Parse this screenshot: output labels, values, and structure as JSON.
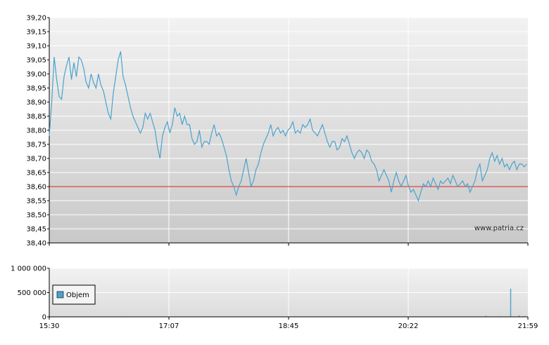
{
  "watermark": "www.patria.cz",
  "chart_data": [
    {
      "type": "line",
      "ylim": [
        38.4,
        39.2
      ],
      "y_ticks": [
        "39,20",
        "39,15",
        "39,10",
        "39,05",
        "39,00",
        "38,95",
        "38,90",
        "38,85",
        "38,80",
        "38,75",
        "38,70",
        "38,65",
        "38,60",
        "38,55",
        "38,50",
        "38,45",
        "38,40"
      ],
      "reference_line": 38.6,
      "colors": {
        "line": "#4aa3cc",
        "reference": "#e02020",
        "grid": "#ffffff"
      },
      "x_range_minutes": [
        0,
        389
      ],
      "series": [
        {
          "points": [
            [
              0,
              38.78
            ],
            [
              2,
              38.9
            ],
            [
              4,
              39.06
            ],
            [
              6,
              38.98
            ],
            [
              8,
              38.92
            ],
            [
              10,
              38.91
            ],
            [
              12,
              38.99
            ],
            [
              14,
              39.03
            ],
            [
              16,
              39.06
            ],
            [
              18,
              38.98
            ],
            [
              20,
              39.04
            ],
            [
              22,
              38.99
            ],
            [
              24,
              39.06
            ],
            [
              26,
              39.05
            ],
            [
              28,
              39.02
            ],
            [
              30,
              38.97
            ],
            [
              32,
              38.95
            ],
            [
              34,
              39.0
            ],
            [
              36,
              38.97
            ],
            [
              38,
              38.95
            ],
            [
              40,
              39.0
            ],
            [
              42,
              38.96
            ],
            [
              44,
              38.94
            ],
            [
              46,
              38.9
            ],
            [
              48,
              38.86
            ],
            [
              50,
              38.84
            ],
            [
              52,
              38.93
            ],
            [
              54,
              38.99
            ],
            [
              56,
              39.05
            ],
            [
              58,
              39.08
            ],
            [
              60,
              38.99
            ],
            [
              62,
              38.96
            ],
            [
              64,
              38.92
            ],
            [
              66,
              38.88
            ],
            [
              68,
              38.85
            ],
            [
              70,
              38.83
            ],
            [
              72,
              38.81
            ],
            [
              74,
              38.79
            ],
            [
              76,
              38.81
            ],
            [
              78,
              38.86
            ],
            [
              80,
              38.84
            ],
            [
              82,
              38.86
            ],
            [
              84,
              38.83
            ],
            [
              86,
              38.8
            ],
            [
              88,
              38.74
            ],
            [
              90,
              38.7
            ],
            [
              92,
              38.78
            ],
            [
              94,
              38.81
            ],
            [
              96,
              38.83
            ],
            [
              98,
              38.79
            ],
            [
              100,
              38.82
            ],
            [
              102,
              38.88
            ],
            [
              104,
              38.85
            ],
            [
              106,
              38.86
            ],
            [
              108,
              38.82
            ],
            [
              110,
              38.85
            ],
            [
              112,
              38.82
            ],
            [
              114,
              38.82
            ],
            [
              116,
              38.77
            ],
            [
              118,
              38.75
            ],
            [
              120,
              38.76
            ],
            [
              122,
              38.8
            ],
            [
              124,
              38.74
            ],
            [
              126,
              38.76
            ],
            [
              128,
              38.76
            ],
            [
              130,
              38.75
            ],
            [
              132,
              38.79
            ],
            [
              134,
              38.82
            ],
            [
              136,
              38.78
            ],
            [
              138,
              38.79
            ],
            [
              140,
              38.77
            ],
            [
              142,
              38.74
            ],
            [
              144,
              38.71
            ],
            [
              146,
              38.66
            ],
            [
              148,
              38.62
            ],
            [
              150,
              38.6
            ],
            [
              152,
              38.57
            ],
            [
              154,
              38.6
            ],
            [
              156,
              38.62
            ],
            [
              158,
              38.66
            ],
            [
              160,
              38.7
            ],
            [
              162,
              38.65
            ],
            [
              164,
              38.6
            ],
            [
              166,
              38.62
            ],
            [
              168,
              38.66
            ],
            [
              170,
              38.68
            ],
            [
              172,
              38.72
            ],
            [
              174,
              38.75
            ],
            [
              176,
              38.77
            ],
            [
              178,
              38.79
            ],
            [
              180,
              38.82
            ],
            [
              182,
              38.78
            ],
            [
              184,
              38.8
            ],
            [
              186,
              38.81
            ],
            [
              188,
              38.79
            ],
            [
              190,
              38.8
            ],
            [
              192,
              38.78
            ],
            [
              194,
              38.8
            ],
            [
              196,
              38.81
            ],
            [
              198,
              38.83
            ],
            [
              200,
              38.79
            ],
            [
              202,
              38.8
            ],
            [
              204,
              38.79
            ],
            [
              206,
              38.82
            ],
            [
              208,
              38.81
            ],
            [
              210,
              38.82
            ],
            [
              212,
              38.84
            ],
            [
              214,
              38.8
            ],
            [
              216,
              38.79
            ],
            [
              218,
              38.78
            ],
            [
              220,
              38.8
            ],
            [
              222,
              38.82
            ],
            [
              224,
              38.79
            ],
            [
              226,
              38.76
            ],
            [
              228,
              38.74
            ],
            [
              230,
              38.76
            ],
            [
              232,
              38.76
            ],
            [
              234,
              38.73
            ],
            [
              236,
              38.74
            ],
            [
              238,
              38.77
            ],
            [
              240,
              38.76
            ],
            [
              242,
              38.78
            ],
            [
              244,
              38.75
            ],
            [
              246,
              38.72
            ],
            [
              248,
              38.7
            ],
            [
              250,
              38.72
            ],
            [
              252,
              38.73
            ],
            [
              254,
              38.72
            ],
            [
              256,
              38.7
            ],
            [
              258,
              38.73
            ],
            [
              260,
              38.72
            ],
            [
              262,
              38.69
            ],
            [
              264,
              38.68
            ],
            [
              266,
              38.66
            ],
            [
              268,
              38.62
            ],
            [
              270,
              38.64
            ],
            [
              272,
              38.66
            ],
            [
              274,
              38.64
            ],
            [
              276,
              38.62
            ],
            [
              278,
              38.58
            ],
            [
              280,
              38.62
            ],
            [
              282,
              38.65
            ],
            [
              284,
              38.62
            ],
            [
              286,
              38.6
            ],
            [
              288,
              38.62
            ],
            [
              290,
              38.64
            ],
            [
              292,
              38.6
            ],
            [
              294,
              38.58
            ],
            [
              296,
              38.59
            ],
            [
              298,
              38.57
            ],
            [
              300,
              38.55
            ],
            [
              302,
              38.58
            ],
            [
              304,
              38.61
            ],
            [
              306,
              38.6
            ],
            [
              308,
              38.62
            ],
            [
              310,
              38.6
            ],
            [
              312,
              38.63
            ],
            [
              314,
              38.61
            ],
            [
              316,
              38.59
            ],
            [
              318,
              38.62
            ],
            [
              320,
              38.61
            ],
            [
              322,
              38.62
            ],
            [
              324,
              38.63
            ],
            [
              326,
              38.61
            ],
            [
              328,
              38.64
            ],
            [
              330,
              38.62
            ],
            [
              332,
              38.6
            ],
            [
              334,
              38.61
            ],
            [
              336,
              38.62
            ],
            [
              338,
              38.6
            ],
            [
              340,
              38.61
            ],
            [
              342,
              38.58
            ],
            [
              344,
              38.6
            ],
            [
              346,
              38.62
            ],
            [
              348,
              38.66
            ],
            [
              350,
              38.68
            ],
            [
              352,
              38.62
            ],
            [
              354,
              38.64
            ],
            [
              356,
              38.66
            ],
            [
              358,
              38.7
            ],
            [
              360,
              38.72
            ],
            [
              362,
              38.69
            ],
            [
              364,
              38.71
            ],
            [
              366,
              38.68
            ],
            [
              368,
              38.7
            ],
            [
              370,
              38.67
            ],
            [
              372,
              38.68
            ],
            [
              374,
              38.66
            ],
            [
              376,
              38.68
            ],
            [
              378,
              38.69
            ],
            [
              380,
              38.66
            ],
            [
              382,
              38.68
            ],
            [
              384,
              38.68
            ],
            [
              386,
              38.67
            ],
            [
              388,
              38.68
            ]
          ]
        }
      ]
    },
    {
      "type": "bar",
      "ylim": [
        0,
        1000000
      ],
      "y_ticks": [
        "1 000 000",
        "500 000",
        "0"
      ],
      "x_ticks": [
        "15:30",
        "17:07",
        "18:45",
        "20:22",
        "21:59"
      ],
      "legend": "Objem",
      "colors": {
        "bar": "#4aa3cc",
        "legend_swatch": "#4aa3cc"
      },
      "series": [
        {
          "name": "Objem",
          "points": [
            [
              10,
              8000
            ],
            [
              35,
              5000
            ],
            [
              60,
              12000
            ],
            [
              84,
              6000
            ],
            [
              115,
              4000
            ],
            [
              140,
              9000
            ],
            [
              166,
              7000
            ],
            [
              200,
              10000
            ],
            [
              233,
              6000
            ],
            [
              260,
              8000
            ],
            [
              285,
              5000
            ],
            [
              309,
              11000
            ],
            [
              333,
              6000
            ],
            [
              355,
              20000
            ],
            [
              366,
              12000
            ],
            [
              375,
              580000
            ],
            [
              382,
              30000
            ],
            [
              386,
              15000
            ]
          ]
        }
      ]
    }
  ]
}
